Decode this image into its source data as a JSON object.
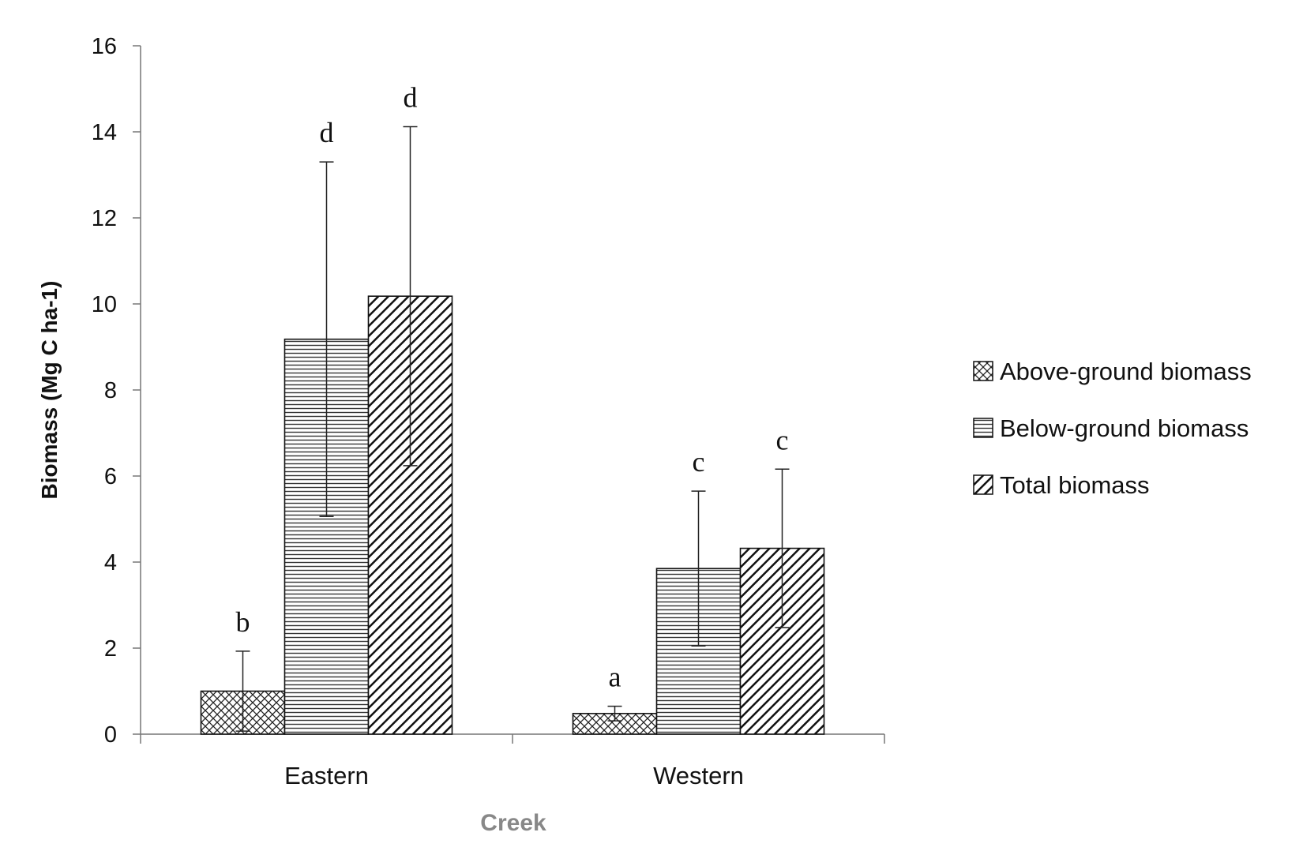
{
  "chart_data": {
    "type": "bar",
    "categories": [
      "Eastern",
      "Western"
    ],
    "series": [
      {
        "name": "Above-ground biomass",
        "values": [
          1.0,
          0.48
        ],
        "error": [
          0.93,
          0.17
        ],
        "letters": [
          "b",
          "a"
        ],
        "pattern": "crosshatch"
      },
      {
        "name": "Below-ground biomass",
        "values": [
          9.18,
          3.85
        ],
        "error": [
          4.12,
          1.8
        ],
        "letters": [
          "d",
          "c"
        ],
        "pattern": "horizontal"
      },
      {
        "name": "Total biomass",
        "values": [
          10.18,
          4.32
        ],
        "error": [
          3.94,
          1.84
        ],
        "letters": [
          "d",
          "c"
        ],
        "pattern": "diagonal"
      }
    ],
    "title": "",
    "xlabel": "Creek",
    "ylabel": "Biomass (Mg C ha-1)",
    "ylim": [
      0,
      16
    ],
    "yticks": [
      0,
      2,
      4,
      6,
      8,
      10,
      12,
      14,
      16
    ],
    "grid": false,
    "legend": "right"
  }
}
